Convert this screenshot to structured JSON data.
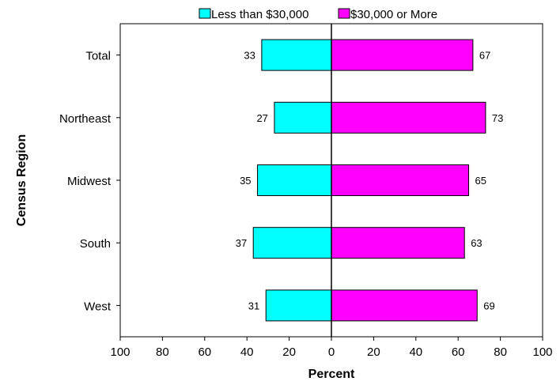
{
  "chart_data": {
    "type": "bar",
    "orientation": "horizontal-diverging",
    "categories": [
      "Total",
      "Northeast",
      "Midwest",
      "South",
      "West"
    ],
    "series": [
      {
        "name": "Less than $30,000",
        "values": [
          33,
          27,
          35,
          37,
          31
        ],
        "color": "#00FFFF",
        "direction": "left"
      },
      {
        "name": "$30,000 or More",
        "values": [
          67,
          73,
          65,
          63,
          69
        ],
        "color": "#FF00FF",
        "direction": "right"
      }
    ],
    "xlabel": "Percent",
    "ylabel": "Census Region",
    "xlim": [
      -100,
      100
    ],
    "xticks": [
      "100",
      "80",
      "60",
      "40",
      "20",
      "0",
      "20",
      "40",
      "60",
      "80",
      "100"
    ],
    "data_labels": [
      [
        "33",
        "27",
        "35",
        "37",
        "31"
      ],
      [
        "67",
        "73",
        "65",
        "63",
        "69"
      ]
    ],
    "legend_position": "top-center",
    "grid": false
  }
}
